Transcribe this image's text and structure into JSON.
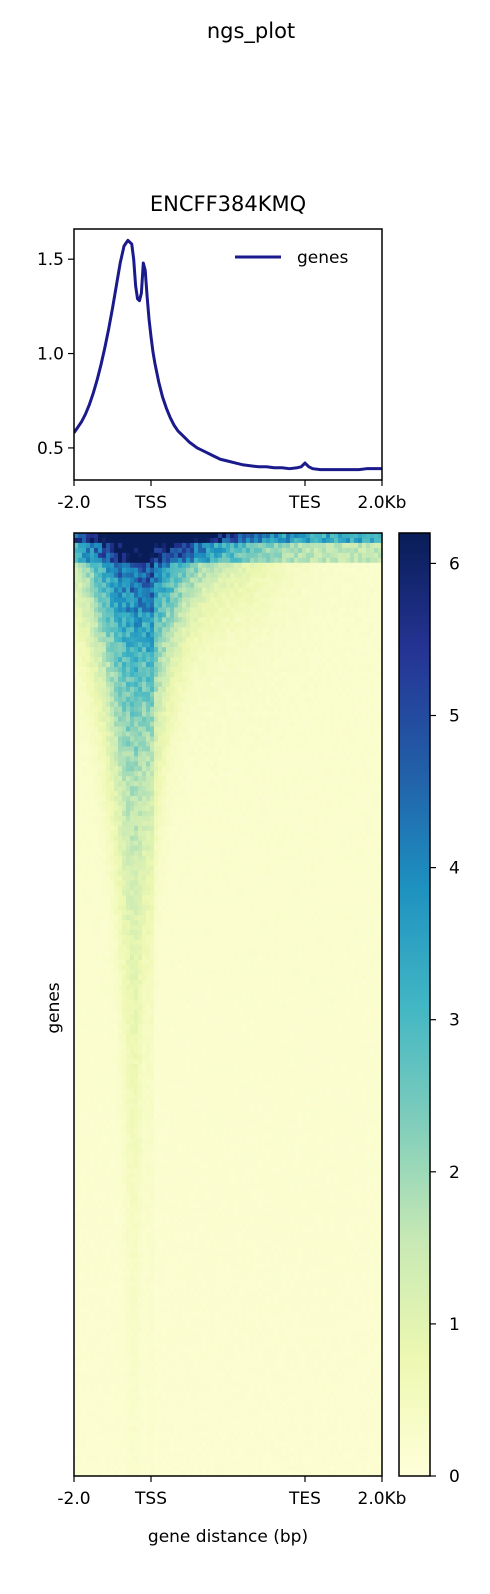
{
  "suptitle": "ngs_plot",
  "chart_data": [
    {
      "type": "line",
      "title": "ENCFF384KMQ",
      "x_tick_labels": [
        "-2.0",
        "TSS",
        "TES",
        "2.0Kb"
      ],
      "x_tick_positions": [
        -2.0,
        0.0,
        4.0,
        6.0
      ],
      "xlim": [
        -2.0,
        6.0
      ],
      "ylim": [
        0.33,
        1.66
      ],
      "y_ticks": [
        0.5,
        1.0,
        1.5
      ],
      "y_tick_labels": [
        "0.5",
        "1.0",
        "1.5"
      ],
      "legend_position": "top-right",
      "series": [
        {
          "name": "genes",
          "color": "#1a1a8c",
          "x": [
            -2.0,
            -1.9,
            -1.8,
            -1.7,
            -1.6,
            -1.5,
            -1.4,
            -1.3,
            -1.2,
            -1.1,
            -1.0,
            -0.9,
            -0.8,
            -0.7,
            -0.6,
            -0.5,
            -0.45,
            -0.4,
            -0.35,
            -0.3,
            -0.25,
            -0.2,
            -0.15,
            -0.1,
            -0.05,
            0.0,
            0.05,
            0.1,
            0.15,
            0.2,
            0.3,
            0.4,
            0.5,
            0.6,
            0.7,
            0.8,
            0.9,
            1.0,
            1.2,
            1.4,
            1.6,
            1.8,
            2.0,
            2.2,
            2.4,
            2.6,
            2.8,
            3.0,
            3.2,
            3.4,
            3.6,
            3.8,
            3.9,
            4.0,
            4.05,
            4.1,
            4.2,
            4.4,
            4.6,
            4.8,
            5.0,
            5.2,
            5.4,
            5.6,
            5.8,
            6.0
          ],
          "y": [
            0.58,
            0.61,
            0.64,
            0.68,
            0.73,
            0.79,
            0.86,
            0.94,
            1.03,
            1.13,
            1.24,
            1.36,
            1.48,
            1.57,
            1.6,
            1.58,
            1.5,
            1.36,
            1.29,
            1.28,
            1.32,
            1.48,
            1.44,
            1.3,
            1.18,
            1.09,
            1.01,
            0.95,
            0.9,
            0.85,
            0.77,
            0.71,
            0.66,
            0.62,
            0.59,
            0.57,
            0.55,
            0.53,
            0.5,
            0.48,
            0.46,
            0.44,
            0.43,
            0.42,
            0.41,
            0.405,
            0.4,
            0.4,
            0.395,
            0.395,
            0.39,
            0.395,
            0.4,
            0.42,
            0.41,
            0.4,
            0.39,
            0.385,
            0.385,
            0.385,
            0.385,
            0.385,
            0.385,
            0.39,
            0.39,
            0.39
          ]
        }
      ]
    },
    {
      "type": "heatmap",
      "xlabel": "gene distance (bp)",
      "ylabel": "genes",
      "x_tick_labels": [
        "-2.0",
        "TSS",
        "TES",
        "2.0Kb"
      ],
      "x_tick_positions": [
        -2.0,
        0.0,
        4.0,
        6.0
      ],
      "xlim": [
        -2.0,
        6.0
      ],
      "colormap": "YlGnBu",
      "colorbar": {
        "min": 0,
        "max": 6.2,
        "ticks": [
          0,
          1,
          2,
          3,
          4,
          5,
          6
        ],
        "tick_labels": [
          "0",
          "1",
          "2",
          "3",
          "4",
          "5",
          "6"
        ],
        "stops": [
          "#ffffd9",
          "#edf8b1",
          "#c7e9b4",
          "#7fcdbb",
          "#41b6c4",
          "#1d91c0",
          "#225ea8",
          "#253494",
          "#081d58"
        ]
      }
    }
  ]
}
